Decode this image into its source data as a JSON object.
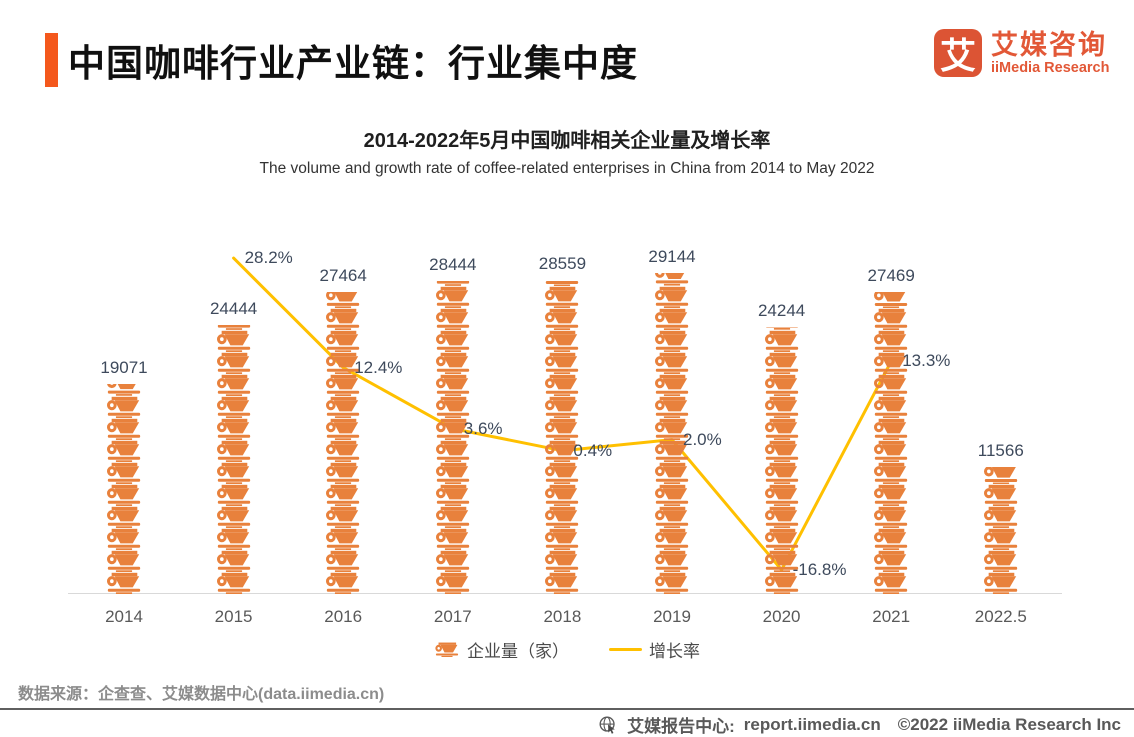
{
  "header": {
    "title": "中国咖啡行业产业链：行业集中度",
    "logo": {
      "glyph": "艾",
      "brand_cn": "艾媒咨询",
      "brand_en": "iiMedia Research"
    }
  },
  "chart_data": {
    "type": "pictograph-bar+line",
    "title": "2014-2022年5月中国咖啡相关企业量及增长率",
    "subtitle": "The volume and growth rate of coffee-related enterprises in China from 2014 to May 2022",
    "categories": [
      "2014",
      "2015",
      "2016",
      "2017",
      "2018",
      "2019",
      "2020",
      "2021",
      "2022.5"
    ],
    "unit_per_icon": 2000,
    "icon": "coffee-cup-icon",
    "grid": false,
    "legend_position": "bottom",
    "series": [
      {
        "name": "企业量（家）",
        "type": "pictograph-bar",
        "color": "#E8813C",
        "values": [
          19071,
          24444,
          27464,
          28444,
          28559,
          29144,
          24244,
          27469,
          11566
        ]
      },
      {
        "name": "增长率",
        "type": "line",
        "color": "#FFC000",
        "values": [
          null,
          28.2,
          12.4,
          3.6,
          0.4,
          2.0,
          -16.8,
          13.3,
          null
        ],
        "labels": [
          null,
          "28.2%",
          "12.4%",
          "3.6%",
          "0.4%",
          "2.0%",
          "-16.8%",
          "13.3%",
          null
        ]
      }
    ]
  },
  "footer": {
    "source": "数据来源：企查查、艾媒数据中心(data.iimedia.cn)",
    "report_center": "艾媒报告中心:",
    "report_url": "report.iimedia.cn",
    "copyright": "©2022  iiMedia Research Inc"
  },
  "icons": {
    "bar_icon": "coffee-cup-icon",
    "bottom_bar_icon": "globe-cursor-icon"
  },
  "colors": {
    "accent": "#F4581C",
    "logo": "#DC5434",
    "brand": "#E25837",
    "cup": "#E8813C",
    "line": "#FFC000",
    "label": "#3E4A5C",
    "tick": "#595959",
    "axis": "#D9D9D9",
    "source": "#8C8C8C",
    "divider": "#5F5F5F",
    "bottom": "#595959"
  }
}
